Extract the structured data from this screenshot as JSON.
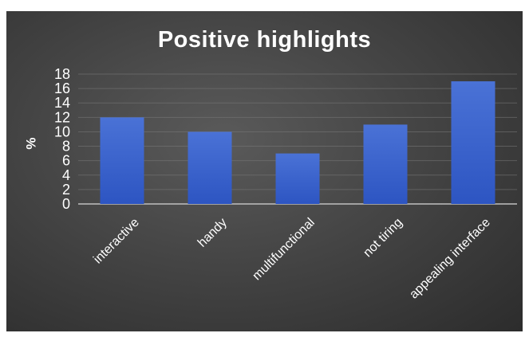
{
  "chart_data": {
    "type": "bar",
    "title": "Positive highlights",
    "xlabel": "",
    "ylabel": "%",
    "categories": [
      "interactive",
      "handy",
      "multifunctional",
      "not tiring",
      "appealing interface"
    ],
    "values": [
      12,
      10,
      7,
      11,
      17
    ],
    "ylim": [
      0,
      18
    ],
    "yticks": [
      "0",
      "2",
      "4",
      "6",
      "8",
      "10",
      "12",
      "14",
      "16",
      "18"
    ],
    "grid": true,
    "legend": "none",
    "colors": {
      "bar": "#4a72d6",
      "bar_dark": "#2d55c2",
      "text": "#ffffff",
      "grid": "#7a7a7a"
    }
  }
}
